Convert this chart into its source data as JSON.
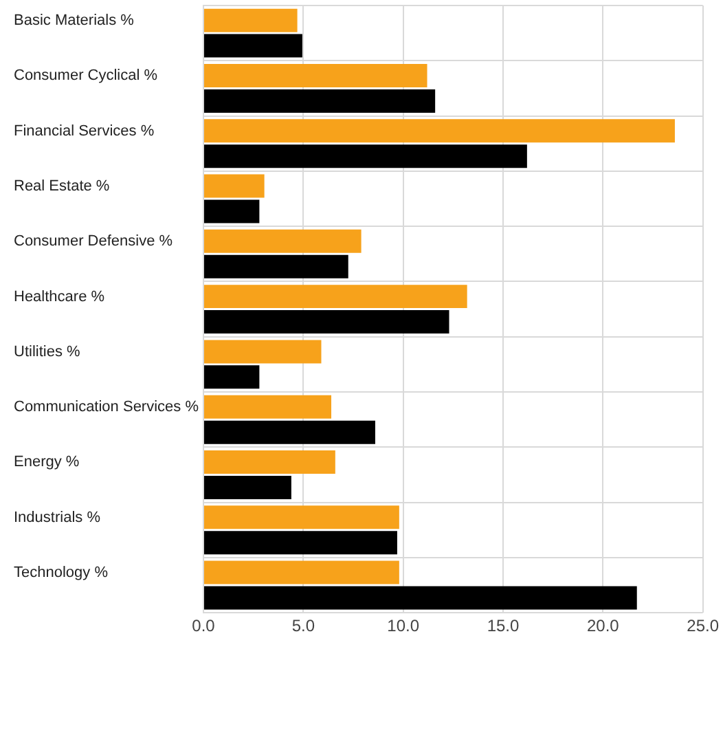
{
  "chart_data": {
    "type": "bar",
    "orientation": "horizontal",
    "categories": [
      "Basic Materials %",
      "Consumer Cyclical %",
      "Financial Services %",
      "Real Estate %",
      "Consumer Defensive %",
      "Healthcare %",
      "Utilities %",
      "Communication Services %",
      "Energy %",
      "Industrials %",
      "Technology %"
    ],
    "series": [
      {
        "color": "#f7a21b",
        "values": [
          4.7,
          11.2,
          23.6,
          3.05,
          7.9,
          13.2,
          5.9,
          6.4,
          6.6,
          9.8,
          9.8
        ]
      },
      {
        "color": "#000000",
        "values": [
          4.95,
          11.6,
          16.2,
          2.8,
          7.25,
          12.3,
          2.8,
          8.6,
          4.4,
          9.7,
          21.7
        ]
      }
    ],
    "xlim": [
      0,
      25
    ],
    "xticks": [
      {
        "value": 0,
        "label": "0.0"
      },
      {
        "value": 5,
        "label": "5.0"
      },
      {
        "value": 10,
        "label": "10.0"
      },
      {
        "value": 15,
        "label": "15.0"
      },
      {
        "value": 20,
        "label": "20.0"
      },
      {
        "value": 25,
        "label": "25.0"
      }
    ],
    "grid": true
  }
}
